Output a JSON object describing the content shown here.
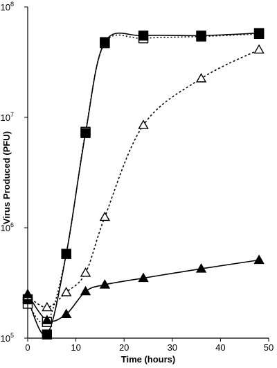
{
  "chart_data": {
    "type": "line",
    "title": "",
    "xlabel": "Time (hours)",
    "ylabel": "Virus Produced (PFU)",
    "xlim": [
      0,
      50
    ],
    "ylim": [
      100000,
      100000000
    ],
    "y_scale": "log",
    "grid": false,
    "legend": "none",
    "x_ticks": [
      0,
      10,
      20,
      30,
      40,
      50
    ],
    "y_ticks": [
      {
        "value": 100000,
        "base": "10",
        "exp": "5"
      },
      {
        "value": 1000000,
        "base": "10",
        "exp": "6"
      },
      {
        "value": 10000000,
        "base": "10",
        "exp": "7"
      },
      {
        "value": 100000000,
        "base": "10",
        "exp": "8"
      }
    ],
    "series": [
      {
        "marker": "square-open",
        "line": "dotted",
        "color": "#000000",
        "x": [
          0,
          4,
          8,
          12,
          16,
          24,
          36,
          48
        ],
        "y": [
          205000,
          140000,
          580000,
          7400000,
          47000000,
          52000000,
          54000000,
          57000000
        ]
      },
      {
        "marker": "square-filled",
        "line": "solid",
        "color": "#000000",
        "x": [
          0,
          4,
          8,
          12,
          16,
          24,
          36,
          48
        ],
        "y": [
          225000,
          108000,
          580000,
          7200000,
          48000000,
          55000000,
          55000000,
          58000000
        ]
      },
      {
        "marker": "triangle-open",
        "line": "dashed",
        "color": "#000000",
        "x": [
          0,
          4,
          8,
          12,
          16,
          24,
          36,
          48
        ],
        "y": [
          240000,
          190000,
          260000,
          390000,
          1250000,
          8500000,
          22500000,
          41000000
        ]
      },
      {
        "marker": "triangle-filled",
        "line": "solid",
        "color": "#000000",
        "x": [
          0,
          4,
          8,
          12,
          16,
          24,
          36,
          48
        ],
        "y": [
          250000,
          145000,
          165000,
          265000,
          305000,
          350000,
          425000,
          510000
        ]
      }
    ]
  }
}
